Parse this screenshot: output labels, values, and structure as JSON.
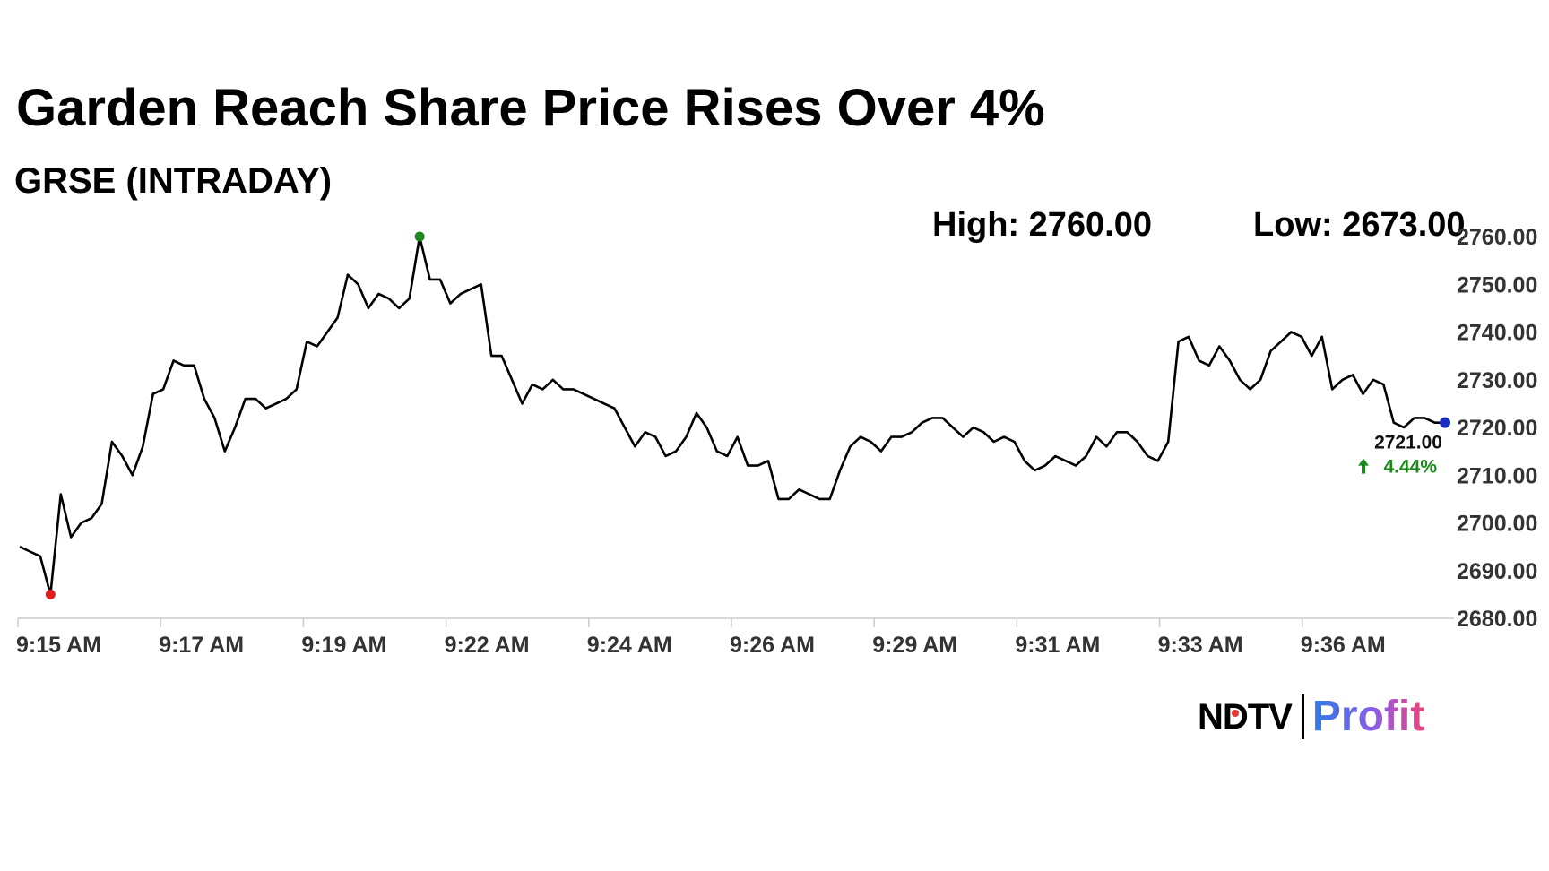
{
  "title": "Garden Reach Share Price Rises Over 4%",
  "subtitle": "GRSE (INTRADAY)",
  "high_label": "High: 2760.00",
  "low_label": "Low: 2673.00",
  "colors": {
    "line": "#000000",
    "high_marker": "#1a8a1a",
    "low_marker": "#e02020",
    "last_marker": "#1a2fbf",
    "change_text": "#1a8a1a",
    "axis": "#cccccc"
  },
  "chart_data": {
    "type": "line",
    "ylim": [
      2680,
      2760
    ],
    "yticks": [
      "2760.00",
      "2750.00",
      "2740.00",
      "2730.00",
      "2720.00",
      "2710.00",
      "2700.00",
      "2690.00",
      "2680.00"
    ],
    "xticks": [
      "9:15 AM",
      "9:17 AM",
      "9:19 AM",
      "9:22 AM",
      "9:24 AM",
      "9:26 AM",
      "9:29 AM",
      "9:31 AM",
      "9:33 AM",
      "9:36 AM"
    ],
    "last_price": "2721.00",
    "change": "4.44%",
    "y": [
      2695,
      2694,
      2693,
      2685,
      2706,
      2697,
      2700,
      2701,
      2704,
      2717,
      2714,
      2710,
      2716,
      2727,
      2728,
      2734,
      2733,
      2733,
      2726,
      2722,
      2715,
      2720,
      2726,
      2726,
      2724,
      2725,
      2726,
      2728,
      2738,
      2737,
      2740,
      2743,
      2752,
      2750,
      2745,
      2748,
      2747,
      2745,
      2747,
      2760,
      2751,
      2751,
      2746,
      2748,
      2749,
      2750,
      2735,
      2735,
      2730,
      2725,
      2729,
      2728,
      2730,
      2728,
      2728,
      2727,
      2726,
      2725,
      2724,
      2720,
      2716,
      2719,
      2718,
      2714,
      2715,
      2718,
      2723,
      2720,
      2715,
      2714,
      2718,
      2712,
      2712,
      2713,
      2705,
      2705,
      2707,
      2706,
      2705,
      2705,
      2711,
      2716,
      2718,
      2717,
      2715,
      2718,
      2718,
      2719,
      2721,
      2722,
      2722,
      2720,
      2718,
      2720,
      2719,
      2717,
      2718,
      2717,
      2713,
      2711,
      2712,
      2714,
      2713,
      2712,
      2714,
      2718,
      2716,
      2719,
      2719,
      2717,
      2714,
      2713,
      2717,
      2738,
      2739,
      2734,
      2733,
      2737,
      2734,
      2730,
      2728,
      2730,
      2736,
      2738,
      2740,
      2739,
      2735,
      2739,
      2728,
      2730,
      2731,
      2727,
      2730,
      2729,
      2721,
      2720,
      2722,
      2722,
      2721,
      2721
    ],
    "high_index": 39,
    "low_index": 3
  },
  "logo": {
    "brand": "NDTV",
    "product": "Profit"
  }
}
